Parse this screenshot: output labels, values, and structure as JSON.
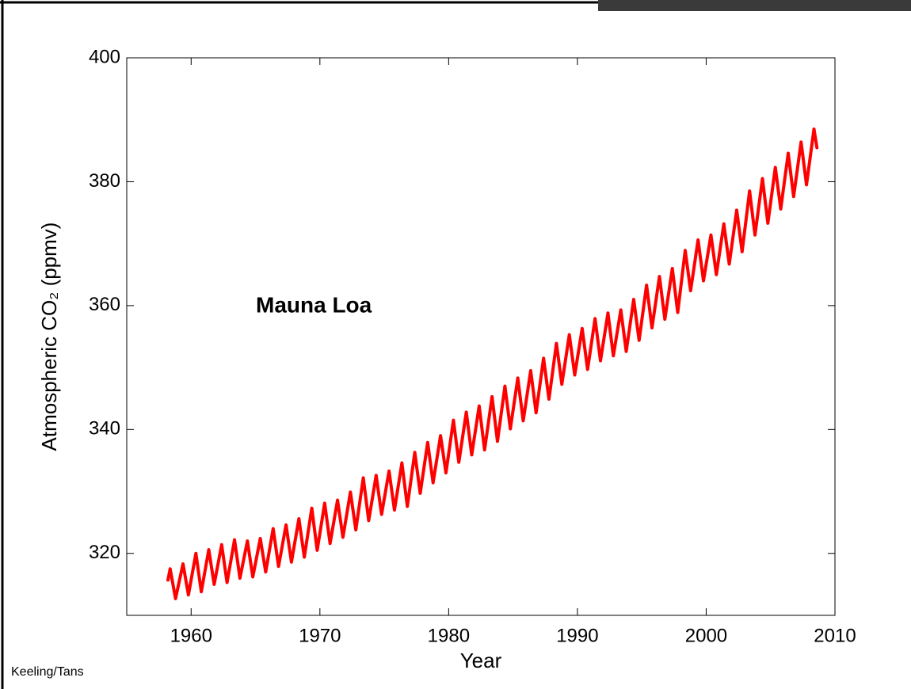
{
  "chart_data": {
    "type": "line",
    "annotation": "Mauna Loa",
    "xlabel": "Year",
    "ylabel": "Atmospheric CO₂ (ppmv)",
    "credit": "Keeling/Tans",
    "color": "#ff0000",
    "xlim": [
      1955,
      2010
    ],
    "ylim": [
      310,
      400
    ],
    "xticks": [
      1960,
      1970,
      1980,
      1990,
      2000,
      2010
    ],
    "yticks": [
      320,
      340,
      360,
      380,
      400
    ],
    "x": [
      1958.2,
      1958.37,
      1958.79,
      1959.37,
      1959.79,
      1960.37,
      1960.79,
      1961.37,
      1961.79,
      1962.37,
      1962.79,
      1963.37,
      1963.79,
      1964.37,
      1964.79,
      1965.37,
      1965.79,
      1966.37,
      1966.79,
      1967.37,
      1967.79,
      1968.37,
      1968.79,
      1969.37,
      1969.79,
      1970.37,
      1970.79,
      1971.37,
      1971.79,
      1972.37,
      1972.79,
      1973.37,
      1973.79,
      1974.37,
      1974.79,
      1975.37,
      1975.79,
      1976.37,
      1976.79,
      1977.37,
      1977.79,
      1978.37,
      1978.79,
      1979.37,
      1979.79,
      1980.37,
      1980.79,
      1981.37,
      1981.79,
      1982.37,
      1982.79,
      1983.37,
      1983.79,
      1984.37,
      1984.79,
      1985.37,
      1985.79,
      1986.37,
      1986.79,
      1987.37,
      1987.79,
      1988.37,
      1988.79,
      1989.37,
      1989.79,
      1990.37,
      1990.79,
      1991.37,
      1991.79,
      1992.37,
      1992.79,
      1993.37,
      1993.79,
      1994.37,
      1994.79,
      1995.37,
      1995.79,
      1996.37,
      1996.79,
      1997.37,
      1997.79,
      1998.37,
      1998.79,
      1999.37,
      1999.79,
      2000.37,
      2000.79,
      2001.37,
      2001.79,
      2002.37,
      2002.79,
      2003.37,
      2003.79,
      2004.37,
      2004.79,
      2005.37,
      2005.79,
      2006.37,
      2006.79,
      2007.37,
      2007.79,
      2008.37,
      2008.6
    ],
    "values": [
      315.7,
      317.5,
      312.7,
      318.3,
      313.3,
      320.0,
      313.8,
      320.6,
      315.0,
      321.4,
      315.3,
      322.2,
      316.0,
      322.0,
      316.2,
      322.4,
      317.0,
      324.0,
      317.9,
      324.6,
      318.6,
      325.6,
      319.4,
      327.3,
      320.5,
      328.1,
      321.6,
      328.6,
      322.6,
      329.9,
      323.8,
      332.2,
      325.3,
      332.6,
      326.3,
      333.3,
      327.0,
      334.6,
      327.6,
      336.3,
      329.7,
      337.9,
      331.4,
      339.0,
      333.0,
      341.5,
      334.7,
      342.8,
      335.9,
      343.8,
      336.7,
      345.3,
      338.1,
      347.0,
      340.1,
      348.3,
      341.4,
      349.5,
      342.7,
      351.5,
      344.9,
      353.9,
      347.3,
      355.3,
      348.8,
      356.3,
      349.7,
      357.9,
      351.1,
      358.8,
      351.9,
      359.3,
      352.6,
      361.0,
      354.4,
      363.3,
      356.4,
      364.7,
      357.8,
      366.0,
      358.9,
      368.9,
      362.4,
      370.6,
      364.0,
      371.4,
      365.0,
      373.2,
      366.7,
      375.4,
      368.7,
      378.5,
      371.4,
      380.5,
      373.3,
      382.3,
      375.6,
      384.6,
      377.6,
      386.4,
      379.5,
      388.5,
      385.5
    ]
  }
}
